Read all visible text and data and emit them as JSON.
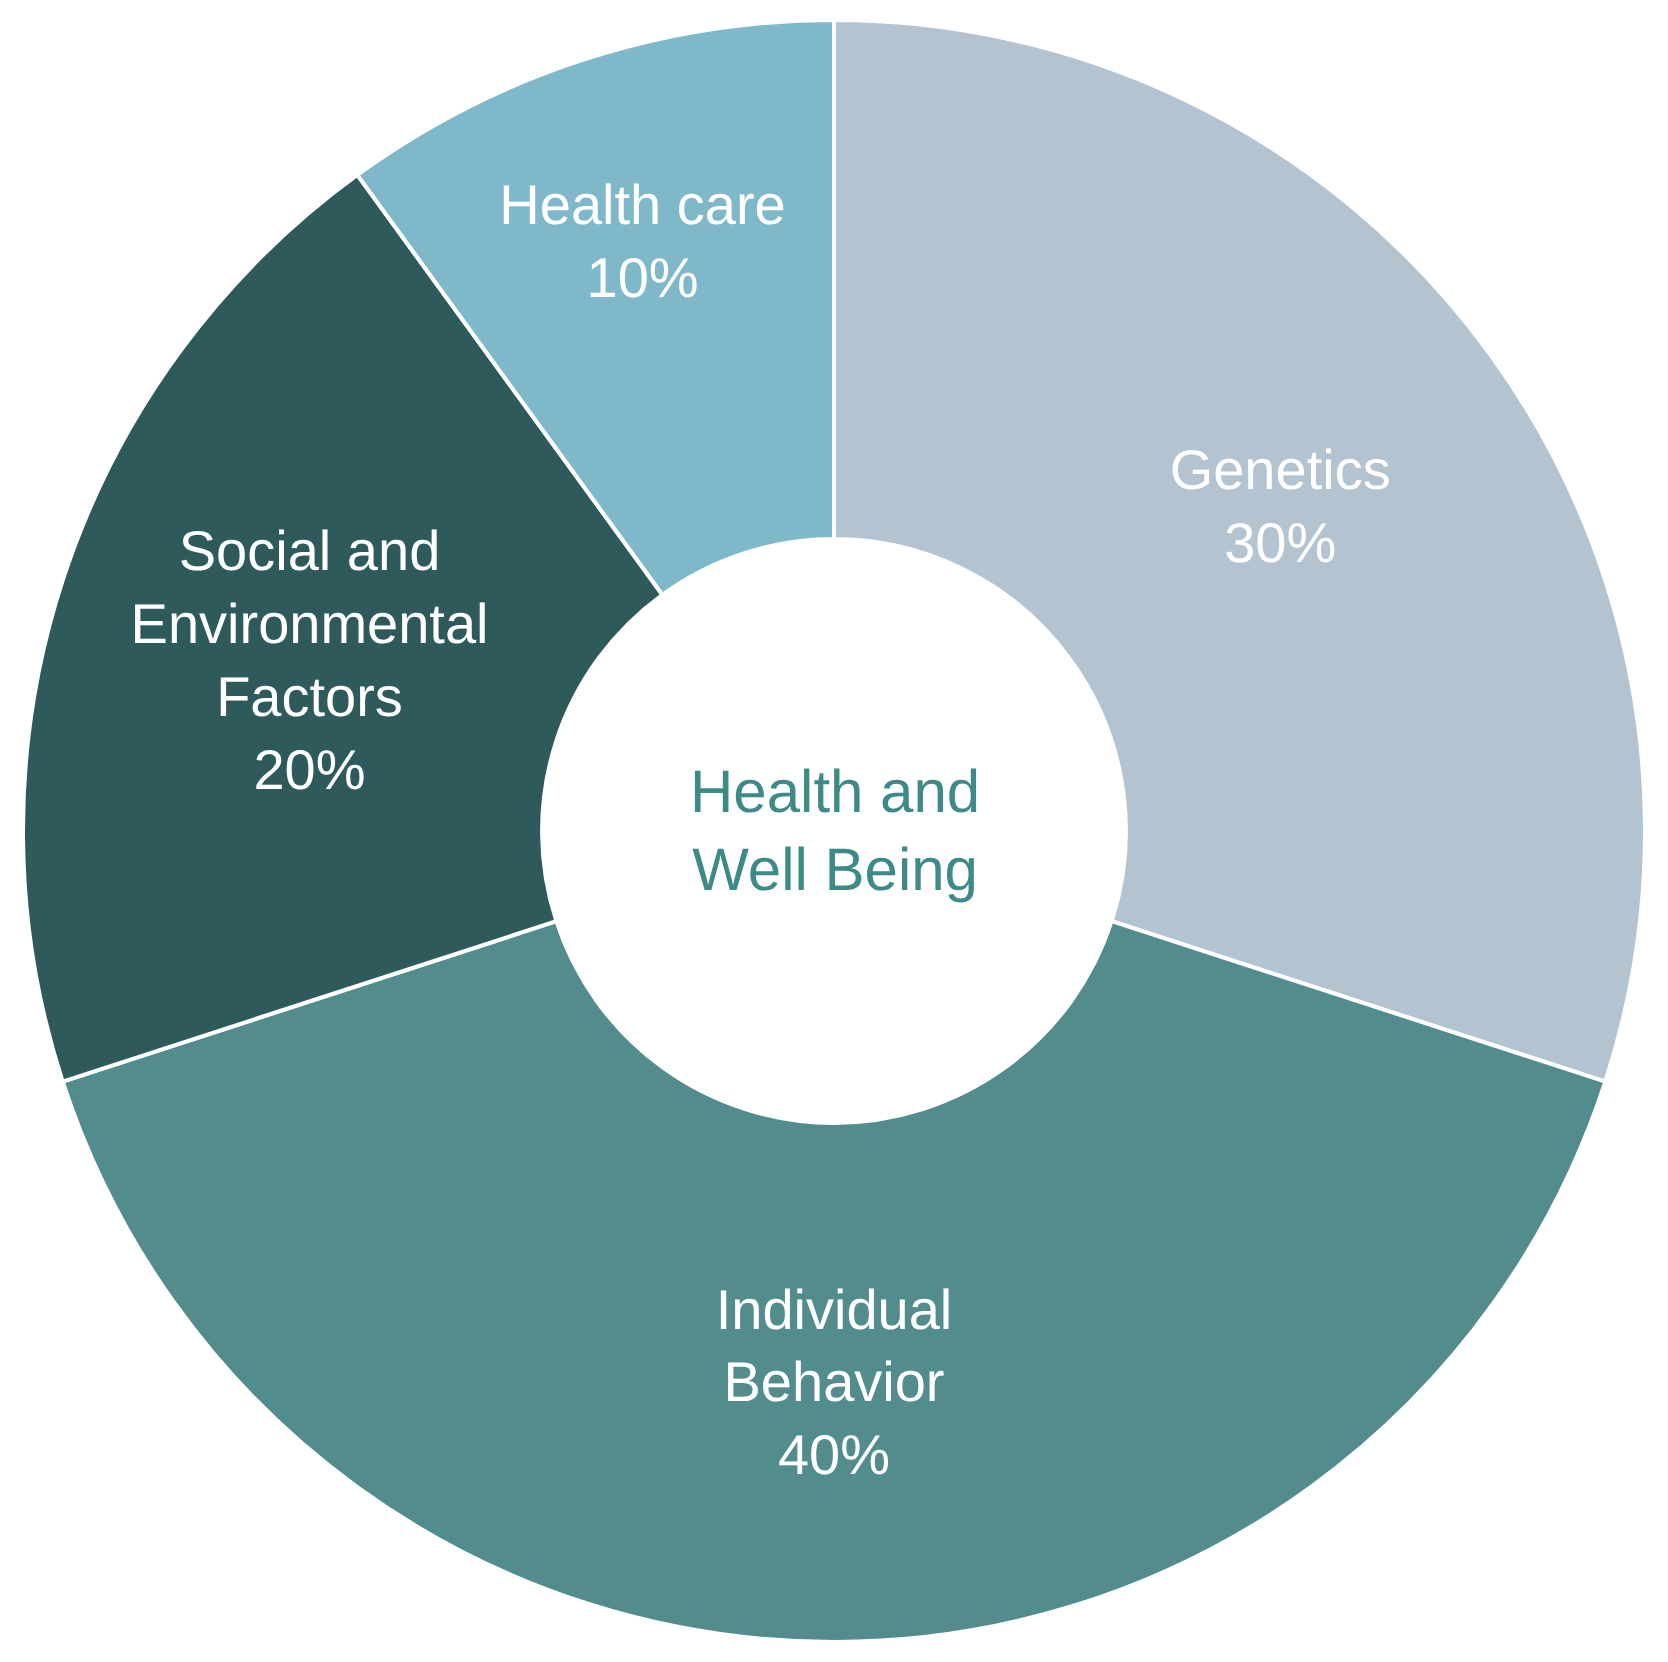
{
  "chart_data": {
    "type": "donut",
    "title": "Health and Well Being",
    "categories": [
      "Genetics",
      "Individual Behavior",
      "Social and Environmental Factors",
      "Health care"
    ],
    "values": [
      30,
      40,
      20,
      10
    ],
    "value_labels": [
      "30%",
      "40%",
      "20%",
      "10%"
    ],
    "colors": [
      "#b3c3d0",
      "#528c8c",
      "#2e5a5c",
      "#7fb8c8"
    ],
    "legend": false
  }
}
